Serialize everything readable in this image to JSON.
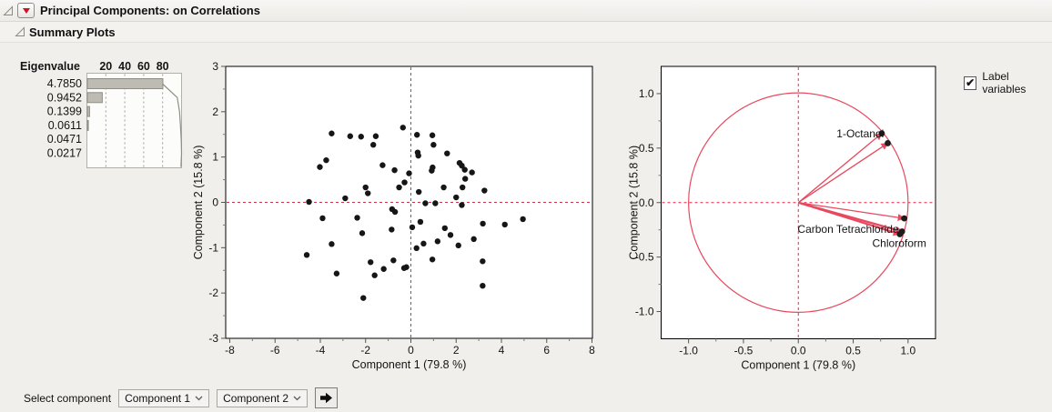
{
  "header": {
    "title": "Principal Components: on Correlations",
    "subtitle": "Summary Plots"
  },
  "controls": {
    "label_variables": "Label variables",
    "label_variables_checked": true,
    "select_component_label": "Select component",
    "component_selects": [
      "Component 1",
      "Component 2"
    ]
  },
  "icons": {
    "disclosure": "open-triangle",
    "menu": "red-triangle-down",
    "checkbox_check": "✔",
    "combo_chevron": "chevron-down",
    "apply_button": "right-arrow"
  },
  "colors": {
    "accent_red": "#e8495e",
    "ref_line_red": "#ea2446",
    "point_black": "#161616",
    "bar_fill": "#bdbbb2",
    "bar_border": "#8f8e85",
    "grid_gray": "#9c9b94",
    "cumulative_line": "#908f87",
    "tick_gray": "#55554f"
  },
  "chart_data": [
    {
      "type": "bar",
      "name": "eigenvalue-pareto",
      "col_header": "Eigenvalue",
      "axis_ticks": [
        20,
        40,
        60,
        80
      ],
      "eigenvalues": [
        "4.7850",
        "0.9452",
        "0.1399",
        "0.0611",
        "0.0471",
        "0.0217"
      ],
      "percents": [
        79.75,
        15.75,
        2.33,
        1.02,
        0.79,
        0.36
      ],
      "cumulative_percents": [
        79.75,
        95.5,
        97.83,
        98.85,
        99.64,
        100.0
      ]
    },
    {
      "type": "scatter",
      "name": "score-plot",
      "xlabel": "Component 1  (79.8 %)",
      "ylabel": "Component 2  (15.8 %)",
      "xlim": [
        -8.18,
        8.02
      ],
      "ylim": [
        -3,
        3
      ],
      "xticks": [
        -8,
        -6,
        -4,
        -2,
        0,
        2,
        4,
        6,
        8
      ],
      "yticks": [
        -3,
        -2,
        -1,
        0,
        1,
        2,
        3
      ],
      "x_minor_step": 1,
      "y_minor_step": 0.5,
      "ref_x": 0,
      "ref_y": 0,
      "points": [
        [
          -0.35,
          1.65
        ],
        [
          -3.5,
          1.52
        ],
        [
          -2.68,
          1.46
        ],
        [
          -2.2,
          1.45
        ],
        [
          -1.55,
          1.46
        ],
        [
          -1.66,
          1.27
        ],
        [
          0.27,
          1.49
        ],
        [
          0.95,
          1.48
        ],
        [
          1.0,
          1.27
        ],
        [
          0.3,
          1.1
        ],
        [
          0.33,
          1.03
        ],
        [
          1.6,
          1.08
        ],
        [
          -3.74,
          0.93
        ],
        [
          -4.02,
          0.78
        ],
        [
          -1.25,
          0.82
        ],
        [
          -0.72,
          0.71
        ],
        [
          -0.08,
          0.64
        ],
        [
          2.15,
          0.87
        ],
        [
          2.25,
          0.81
        ],
        [
          2.38,
          0.72
        ],
        [
          2.7,
          0.66
        ],
        [
          0.96,
          0.77
        ],
        [
          0.92,
          0.7
        ],
        [
          2.4,
          0.52
        ],
        [
          -0.28,
          0.44
        ],
        [
          -0.52,
          0.33
        ],
        [
          -2.0,
          0.33
        ],
        [
          1.45,
          0.33
        ],
        [
          2.28,
          0.33
        ],
        [
          0.35,
          0.23
        ],
        [
          -1.9,
          0.2
        ],
        [
          3.25,
          0.26
        ],
        [
          2.0,
          0.11
        ],
        [
          -2.9,
          0.09
        ],
        [
          -4.5,
          0.01
        ],
        [
          0.64,
          -0.02
        ],
        [
          1.08,
          -0.02
        ],
        [
          2.25,
          -0.06
        ],
        [
          -0.83,
          -0.15
        ],
        [
          -0.7,
          -0.21
        ],
        [
          -3.9,
          -0.35
        ],
        [
          -2.37,
          -0.34
        ],
        [
          0.42,
          -0.43
        ],
        [
          3.18,
          -0.47
        ],
        [
          4.15,
          -0.49
        ],
        [
          4.95,
          -0.37
        ],
        [
          0.06,
          -0.55
        ],
        [
          -0.85,
          -0.6
        ],
        [
          1.5,
          -0.57
        ],
        [
          -2.15,
          -0.68
        ],
        [
          1.75,
          -0.72
        ],
        [
          2.78,
          -0.81
        ],
        [
          1.18,
          -0.86
        ],
        [
          -3.5,
          -0.92
        ],
        [
          0.56,
          -0.91
        ],
        [
          2.1,
          -0.95
        ],
        [
          0.25,
          -1.01
        ],
        [
          -4.6,
          -1.16
        ],
        [
          0.95,
          -1.26
        ],
        [
          3.17,
          -1.3
        ],
        [
          -1.78,
          -1.32
        ],
        [
          -0.77,
          -1.28
        ],
        [
          -0.3,
          -1.45
        ],
        [
          -0.2,
          -1.43
        ],
        [
          -1.2,
          -1.47
        ],
        [
          -3.28,
          -1.57
        ],
        [
          -1.6,
          -1.61
        ],
        [
          3.17,
          -1.84
        ],
        [
          -2.1,
          -2.11
        ]
      ]
    },
    {
      "type": "loading",
      "name": "loading-plot",
      "xlabel": "Component 1  (79.8 %)",
      "ylabel": "Component 2  (15.8 %)",
      "xlim": [
        -1.25,
        1.25
      ],
      "ylim": [
        -1.25,
        1.25
      ],
      "xticks": [
        -1,
        -0.5,
        0,
        0.5,
        1
      ],
      "yticks": [
        -1,
        -0.5,
        0,
        0.5,
        1
      ],
      "xtick_labels": [
        "-1.0",
        "-0.5",
        "0.0",
        "0.5",
        "1.0"
      ],
      "ytick_labels": [
        "-1.0",
        "-0.5",
        "0.0",
        "0.5",
        "1.0"
      ],
      "x_minor_step": 0.25,
      "y_minor_step": 0.25,
      "ref_x": 0,
      "ref_y": 0,
      "unit_circle": true,
      "vectors": [
        {
          "x": 0.76,
          "y": 0.635
        },
        {
          "x": 0.815,
          "y": 0.545
        },
        {
          "x": 0.965,
          "y": -0.145
        },
        {
          "x": 0.945,
          "y": -0.265,
          "thick": true
        },
        {
          "x": 0.925,
          "y": -0.29,
          "thick": true
        }
      ],
      "labels": [
        {
          "text": "1-Octanol",
          "x": 0.78,
          "y": 0.6,
          "anchor": "end"
        },
        {
          "text": "Carbon Tetrachloride",
          "x": 0.915,
          "y": -0.276,
          "anchor": "end"
        },
        {
          "text": "Chloroform",
          "x": 0.92,
          "y": -0.408,
          "anchor": "middle"
        }
      ]
    }
  ]
}
